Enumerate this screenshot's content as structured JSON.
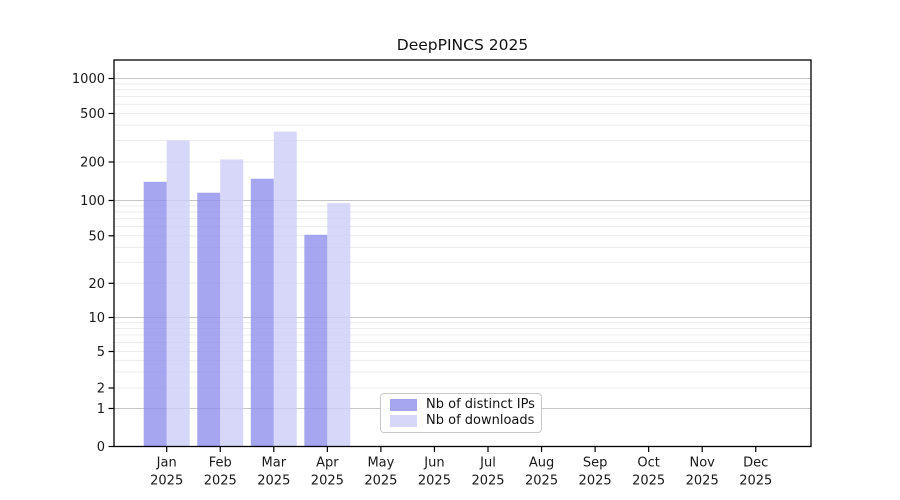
{
  "title": "DeepPINCS 2025",
  "chart_data": {
    "type": "bar",
    "title": "DeepPINCS 2025",
    "x_categories": [
      "Jan",
      "Feb",
      "Mar",
      "Apr",
      "May",
      "Jun",
      "Jul",
      "Aug",
      "Sep",
      "Oct",
      "Nov",
      "Dec"
    ],
    "x_year_label": "2025",
    "series": [
      {
        "name": "Nb of distinct IPs",
        "color": "#8e8eec",
        "opacity": 0.8,
        "values": [
          140,
          115,
          148,
          51,
          null,
          null,
          null,
          null,
          null,
          null,
          null,
          null
        ]
      },
      {
        "name": "Nb of downloads",
        "color": "#cdcef8",
        "opacity": 0.8,
        "values": [
          300,
          210,
          355,
          95,
          null,
          null,
          null,
          null,
          null,
          null,
          null,
          null
        ]
      }
    ],
    "y_ticks": [
      0,
      1,
      2,
      5,
      10,
      20,
      50,
      100,
      200,
      500,
      1000
    ],
    "y_tick_labels": [
      "0",
      "1",
      "2",
      "5",
      "10",
      "20",
      "50",
      "100",
      "200",
      "500",
      "1000"
    ],
    "y_scale": "symlog",
    "ylim": [
      0,
      1400
    ],
    "grid": true,
    "grid_major_color": "#c6c6c6",
    "grid_minor_color": "#ececec",
    "spine_color": "#000000",
    "text_color": "#1a1a1a",
    "legend_position": "lower center"
  }
}
